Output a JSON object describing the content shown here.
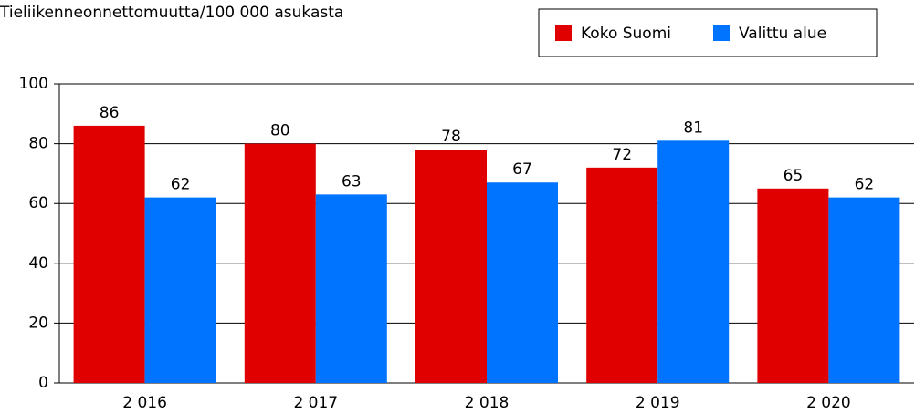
{
  "chart_data": {
    "type": "bar",
    "title": "Tieliikenneonnettomuutta/100 000 asukasta",
    "categories": [
      "2 016",
      "2 017",
      "2 018",
      "2 019",
      "2 020"
    ],
    "series": [
      {
        "name": "Koko Suomi",
        "color": "#e00000",
        "values": [
          86,
          80,
          78,
          72,
          65
        ]
      },
      {
        "name": "Valittu alue",
        "color": "#0073ff",
        "values": [
          62,
          63,
          67,
          81,
          62
        ]
      }
    ],
    "ylim": [
      0,
      100
    ],
    "yticks": [
      0,
      20,
      40,
      60,
      80,
      100
    ],
    "grid": true,
    "legend": "top-right"
  }
}
